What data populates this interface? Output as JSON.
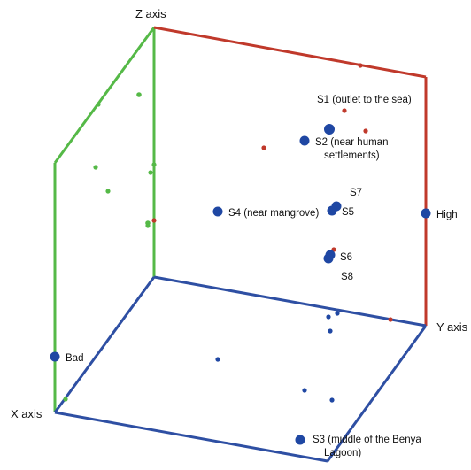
{
  "axes": {
    "x_label": "X axis",
    "y_label": "Y axis",
    "z_label": "Z axis"
  },
  "markers": {
    "bad": "Bad",
    "high": "High"
  },
  "stations": {
    "s1": "S1 (outlet to the sea)",
    "s2_line1": "S2 (near human",
    "s2_line2": "settlements)",
    "s3_line1": "S3 (middle of the Benya",
    "s3_line2": "Lagoon)",
    "s4": "S4 (near mangrove)",
    "s5": "S5",
    "s6": "S6",
    "s7": "S7",
    "s8": "S8"
  },
  "colors": {
    "xz_plane": "#55b947",
    "yz_plane": "#c0392b",
    "xy_plane": "#2e4fa3",
    "station": "#1f47a3"
  }
}
